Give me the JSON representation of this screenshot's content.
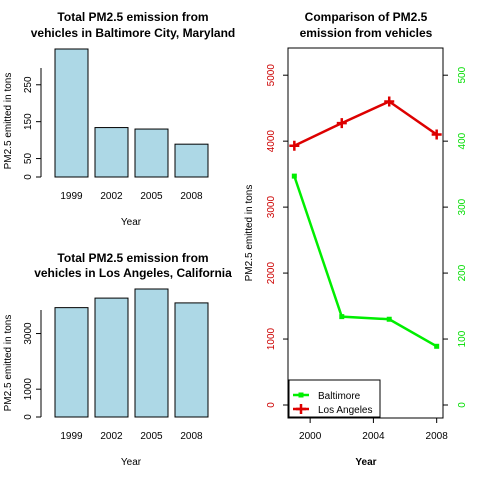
{
  "chart_data": [
    {
      "type": "bar",
      "title": [
        "Total PM2.5 emission from",
        "vehicles in Baltimore City, Maryland"
      ],
      "xlabel": "Year",
      "ylabel": "PM2.5 emitted in tons",
      "categories": [
        "1999",
        "2002",
        "2005",
        "2008"
      ],
      "values": [
        347,
        134,
        130,
        89
      ],
      "ylim": [
        0,
        347
      ],
      "yticks": [
        "0",
        "50",
        "150",
        "250"
      ],
      "bar_color": "#add8e6"
    },
    {
      "type": "bar",
      "title": [
        "Total PM2.5 emission from",
        "vehicles in Los Angeles, California"
      ],
      "xlabel": "Year",
      "ylabel": "PM2.5 emitted in tons",
      "categories": [
        "1999",
        "2002",
        "2005",
        "2008"
      ],
      "values": [
        3931,
        4274,
        4601,
        4101
      ],
      "ylim": [
        0,
        4601
      ],
      "yticks": [
        "0",
        "1000",
        "3000"
      ],
      "bar_color": "#add8e6"
    },
    {
      "type": "line",
      "title": [
        "Comparison of PM2.5",
        "emission from vehicles"
      ],
      "xlabel": "Year",
      "ylabel": "PM2.5 emitted in tons",
      "x": [
        1999,
        2002,
        2005,
        2008
      ],
      "xticks": [
        "2000",
        "2004",
        "2008"
      ],
      "xlim": [
        1998.6,
        2008.4
      ],
      "left_axis": {
        "ylim": [
          0,
          5200
        ],
        "ticks": [
          "0",
          "1000",
          "2000",
          "3000",
          "4000",
          "5000"
        ],
        "color": "#cc0000"
      },
      "right_axis": {
        "ylim": [
          0,
          520
        ],
        "ticks": [
          "0",
          "100",
          "200",
          "300",
          "400",
          "500"
        ],
        "color": "#00dd00"
      },
      "series": [
        {
          "name": "Baltimore",
          "axis": "right",
          "values": [
            347,
            134,
            130,
            89
          ],
          "color": "#00ee00",
          "marker": "square"
        },
        {
          "name": "Los Angeles",
          "axis": "left",
          "values": [
            3931,
            4274,
            4601,
            4101
          ],
          "color": "#dd0000",
          "marker": "plus"
        }
      ],
      "legend": "bottom-left"
    }
  ]
}
